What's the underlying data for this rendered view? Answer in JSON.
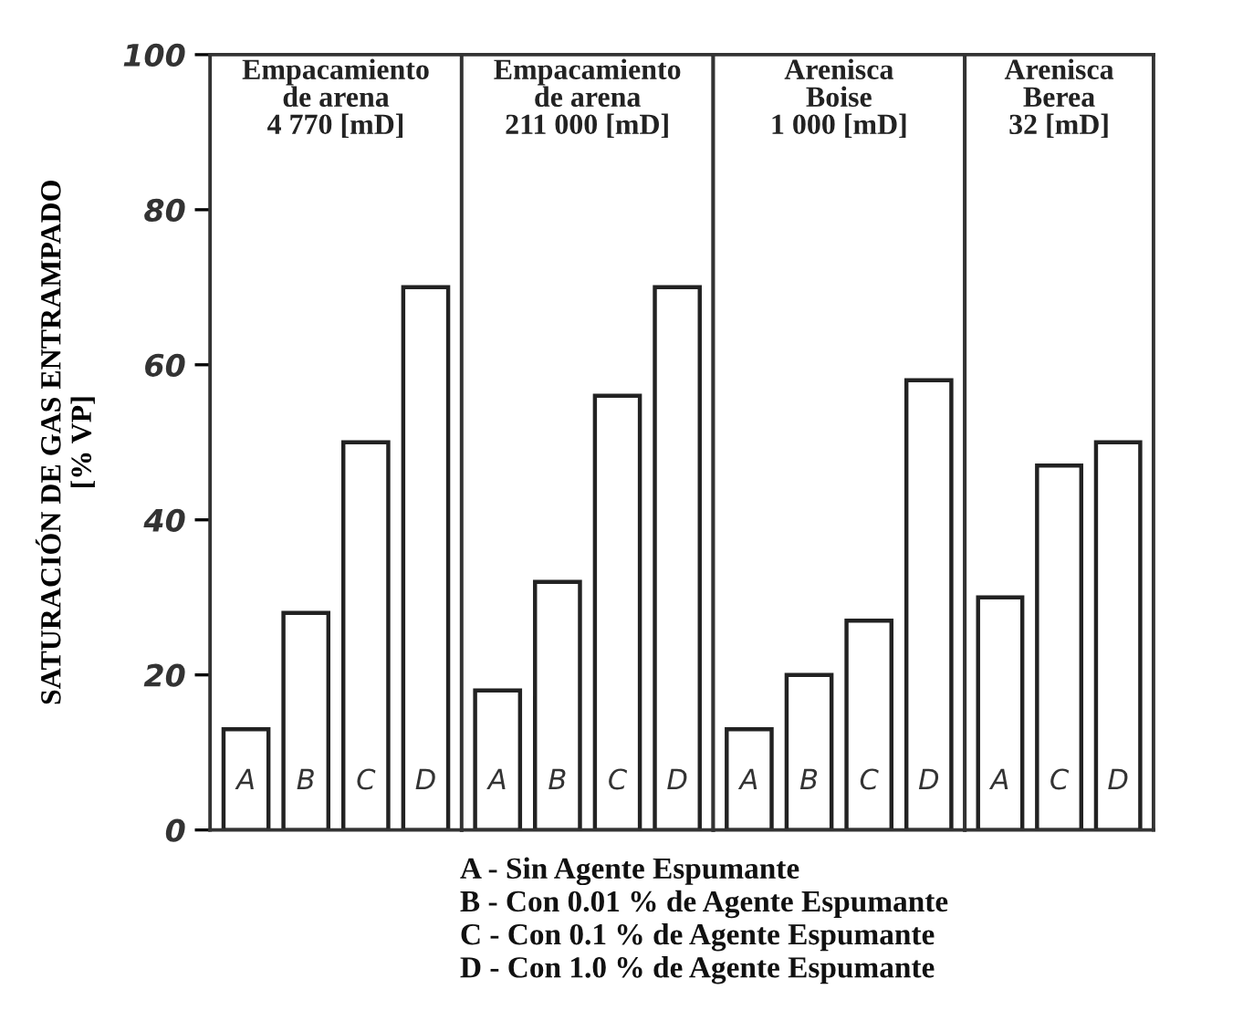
{
  "chart_data": [
    {
      "type": "bar",
      "title": "Empacamiento\nde arena\n4 770 [mD]",
      "ylabel": "SATURACIÓN DE GAS ENTRAMPADO\n[% VP]",
      "categories": [
        "A",
        "B",
        "C",
        "D"
      ],
      "values": [
        13,
        28,
        50,
        70
      ],
      "color": "#ffffff",
      "ylim": [
        0,
        100
      ],
      "yticks": [
        0,
        20,
        40,
        60,
        80,
        100
      ],
      "grid": false,
      "annotations": [
        "A - Sin Agente Espumante",
        "B - Con 0.01 % de Agente Espumante",
        "C - Con 0.1 % de Agente Espumante",
        "D - Con 1.0 % de Agente Espumante"
      ]
    },
    {
      "type": "bar",
      "title": "Empacamiento\nde arena\n211 000 [mD]",
      "categories": [
        "A",
        "B",
        "C",
        "D"
      ],
      "values": [
        18,
        32,
        56,
        70
      ],
      "color": "#ffffff",
      "ylim": [
        0,
        100
      ],
      "tick_labels": "x",
      "grid": false
    },
    {
      "type": "bar",
      "title": "Arenisca\nBoise\n1 000 [mD]",
      "categories": [
        "A",
        "B",
        "C",
        "D"
      ],
      "values": [
        13,
        20,
        27,
        58
      ],
      "color": "#ffffff",
      "ylim": [
        0,
        100
      ],
      "tick_labels": "x",
      "grid": false
    },
    {
      "type": "bar",
      "title": "Arenisca\nBerea\n32 [mD]",
      "categories": [
        "A",
        "C",
        "D"
      ],
      "values": [
        30,
        47,
        50
      ],
      "color": "#ffffff",
      "ylim": [
        0,
        100
      ],
      "tick_labels": "x",
      "grid": false
    }
  ]
}
